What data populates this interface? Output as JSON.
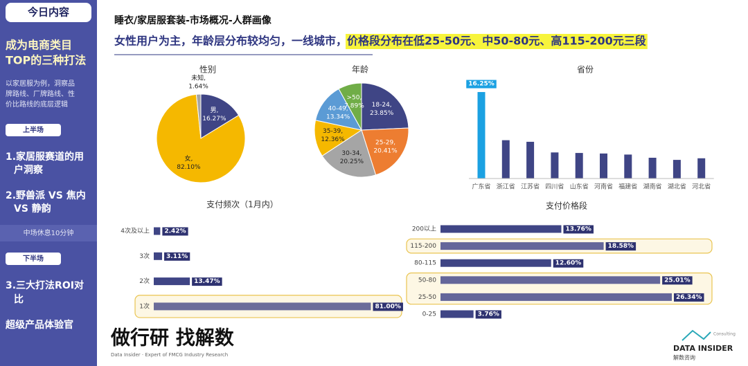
{
  "sidebar": {
    "header": "今日内容",
    "title_lines": [
      "成为电商类目",
      "TOP的三种打法"
    ],
    "description_lines": [
      "以家居服为例，洞察品",
      "牌路线、厂牌路线、性",
      "价比路线的底层逻辑"
    ],
    "first_half": "上半场",
    "item1_lines": [
      "1.家居服赛道的用",
      "户洞察"
    ],
    "item2_lines": [
      "2.野兽派 VS 焦内",
      "VS 静韵"
    ],
    "break": "中场休息10分钟",
    "second_half": "下半场",
    "item3_lines": [
      "3.三大打法ROI对",
      "比"
    ],
    "footer_item": "超级产品体验官"
  },
  "header": {
    "title": "睡衣/家居服套装-市场概况-人群画像",
    "summary": "女性用户为主，年龄层分布较均匀，一线城市，",
    "highlight": "价格段分布在低25-50元、中50-80元、高115-200元三段"
  },
  "footer": {
    "slogan": "做行研 找解数",
    "tagline": "Data Insider · Expert of FMCG Industry Research",
    "logo": "DATA INSIDER",
    "logo_cn": "解数咨询",
    "logo_sub": "Consulting"
  },
  "chart_data": [
    {
      "type": "pie",
      "title": "性别",
      "categories": [
        "男,",
        "女,",
        "未知,"
      ],
      "values": [
        16.27,
        82.1,
        1.64
      ],
      "value_labels": [
        "16.27%",
        "82.10%",
        "1.64%"
      ],
      "colors": [
        "#3f4585",
        "#f5b800",
        "#a5a5a5"
      ]
    },
    {
      "type": "pie",
      "title": "年龄",
      "categories": [
        "18-24,",
        "25-29,",
        "30-34,",
        "35-39,",
        "40-49,",
        ">50,"
      ],
      "values": [
        23.85,
        20.41,
        20.25,
        12.36,
        13.34,
        7.89
      ],
      "value_labels": [
        "23.85%",
        "20.41%",
        "20.25%",
        "12.36%",
        "13.34%",
        "7.89%"
      ],
      "colors": [
        "#3f4585",
        "#ed7d31",
        "#a5a5a5",
        "#f5b800",
        "#5b9bd5",
        "#70ad47"
      ]
    },
    {
      "type": "bar",
      "title": "省份",
      "categories": [
        "广东省",
        "浙江省",
        "江苏省",
        "四川省",
        "山东省",
        "河南省",
        "福建省",
        "湖南省",
        "湖北省",
        "河北省"
      ],
      "values": [
        16.25,
        7.2,
        6.9,
        4.9,
        4.8,
        4.7,
        4.5,
        3.9,
        3.5,
        3.8
      ],
      "value_labels": [
        "16.25%",
        null,
        null,
        null,
        null,
        null,
        null,
        null,
        null,
        null
      ],
      "colors": [
        "#1ba1e2",
        "#3f4585",
        "#3f4585",
        "#3f4585",
        "#3f4585",
        "#3f4585",
        "#3f4585",
        "#3f4585",
        "#3f4585",
        "#3f4585"
      ]
    },
    {
      "type": "bar",
      "horizontal": true,
      "title": "支付频次（1月内）",
      "categories": [
        "4次及以上",
        "3次",
        "2次",
        "1次"
      ],
      "values": [
        2.42,
        3.11,
        13.47,
        81.0
      ],
      "value_labels": [
        "2.42%",
        "3.11%",
        "13.47%",
        "81.00%"
      ],
      "colors": [
        "#3f4585",
        "#3f4585",
        "#3f4585",
        "#6b6d9a"
      ],
      "highlight": [
        false,
        false,
        false,
        true
      ]
    },
    {
      "type": "bar",
      "horizontal": true,
      "title": "支付价格段",
      "categories": [
        "200以上",
        "115-200",
        "80-115",
        "50-80",
        "25-50",
        "0-25"
      ],
      "values": [
        13.76,
        18.58,
        12.6,
        25.01,
        26.34,
        3.76
      ],
      "value_labels": [
        "13.76%",
        "18.58%",
        "12.60%",
        "25.01%",
        "26.34%",
        "3.76%"
      ],
      "colors": [
        "#3f4585",
        "#64669a",
        "#3f4585",
        "#64669a",
        "#64669a",
        "#3f4585"
      ],
      "highlight": [
        false,
        true,
        false,
        true,
        true,
        false
      ]
    }
  ]
}
